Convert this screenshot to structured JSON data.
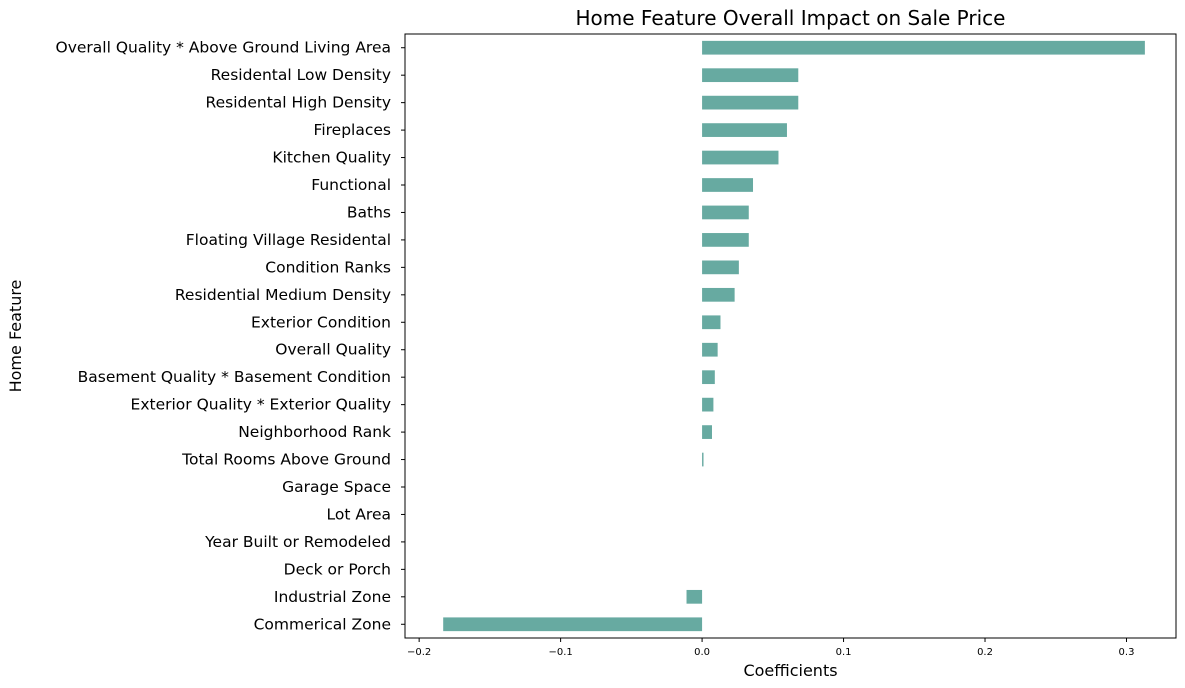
{
  "chart_data": {
    "type": "bar",
    "orientation": "horizontal",
    "title": "Home Feature Overall Impact on Sale Price",
    "xlabel": "Coefficients",
    "ylabel": "Home Feature",
    "xlim": [
      -0.21,
      0.335
    ],
    "xticks": [
      -0.2,
      -0.1,
      0.0,
      0.1,
      0.2,
      0.3
    ],
    "xtick_labels": [
      "−0.2",
      "−0.1",
      "0.0",
      "0.1",
      "0.2",
      "0.3"
    ],
    "grid": false,
    "bar_color": "#67aaa1",
    "categories": [
      "Overall Quality * Above Ground Living Area",
      "Residental Low Density",
      "Residental High Density",
      "Fireplaces",
      "Kitchen Quality",
      "Functional",
      "Baths",
      "Floating Village Residental",
      "Condition Ranks",
      "Residential Medium Density",
      "Exterior Condition",
      "Overall Quality",
      "Basement Quality * Basement Condition ",
      "Exterior Quality * Exterior Quality",
      "Neighborhood Rank",
      "Total Rooms Above Ground",
      "Garage Space",
      "Lot Area",
      "Year Built or Remodeled",
      "Deck or Porch",
      "Industrial Zone",
      "Commerical Zone"
    ],
    "values": [
      0.313,
      0.068,
      0.068,
      0.06,
      0.054,
      0.036,
      0.033,
      0.033,
      0.026,
      0.023,
      0.013,
      0.011,
      0.009,
      0.008,
      0.007,
      0.001,
      0.0,
      0.0,
      0.0,
      0.0,
      -0.011,
      -0.183
    ]
  }
}
